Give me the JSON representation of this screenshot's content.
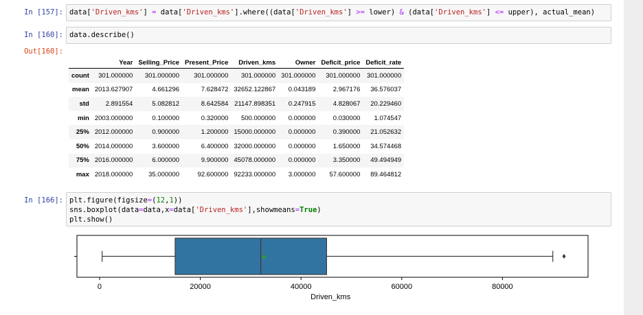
{
  "cells": [
    {
      "prompt": "In [157]:",
      "code_tokens": [
        {
          "t": "data[",
          "c": ""
        },
        {
          "t": "'Driven_kms'",
          "c": "s"
        },
        {
          "t": "] ",
          "c": ""
        },
        {
          "t": "=",
          "c": "o"
        },
        {
          "t": " data[",
          "c": ""
        },
        {
          "t": "'Driven_kms'",
          "c": "s"
        },
        {
          "t": "].where((data[",
          "c": ""
        },
        {
          "t": "'Driven_kms'",
          "c": "s"
        },
        {
          "t": "] ",
          "c": ""
        },
        {
          "t": ">=",
          "c": "o"
        },
        {
          "t": " lower) ",
          "c": ""
        },
        {
          "t": "&",
          "c": "o"
        },
        {
          "t": " (data[",
          "c": ""
        },
        {
          "t": "'Driven_kms'",
          "c": "s"
        },
        {
          "t": "] ",
          "c": ""
        },
        {
          "t": "<=",
          "c": "o"
        },
        {
          "t": " upper), actual_mean)",
          "c": ""
        }
      ]
    },
    {
      "prompt": "In [160]:",
      "code_tokens": [
        {
          "t": "data.describe()",
          "c": ""
        }
      ]
    }
  ],
  "output_prompt": "Out[160]:",
  "describe_table": {
    "columns": [
      "Year",
      "Selling_Price",
      "Present_Price",
      "Driven_kms",
      "Owner",
      "Deficit_price",
      "Deficit_rate"
    ],
    "rows": [
      {
        "label": "count",
        "values": [
          "301.000000",
          "301.000000",
          "301.000000",
          "301.000000",
          "301.000000",
          "301.000000",
          "301.000000"
        ]
      },
      {
        "label": "mean",
        "values": [
          "2013.627907",
          "4.661296",
          "7.628472",
          "32652.122867",
          "0.043189",
          "2.967176",
          "36.576037"
        ]
      },
      {
        "label": "std",
        "values": [
          "2.891554",
          "5.082812",
          "8.642584",
          "21147.898351",
          "0.247915",
          "4.828067",
          "20.229460"
        ]
      },
      {
        "label": "min",
        "values": [
          "2003.000000",
          "0.100000",
          "0.320000",
          "500.000000",
          "0.000000",
          "0.030000",
          "1.074547"
        ]
      },
      {
        "label": "25%",
        "values": [
          "2012.000000",
          "0.900000",
          "1.200000",
          "15000.000000",
          "0.000000",
          "0.390000",
          "21.052632"
        ]
      },
      {
        "label": "50%",
        "values": [
          "2014.000000",
          "3.600000",
          "6.400000",
          "32000.000000",
          "0.000000",
          "1.650000",
          "34.574468"
        ]
      },
      {
        "label": "75%",
        "values": [
          "2016.000000",
          "6.000000",
          "9.900000",
          "45078.000000",
          "0.000000",
          "3.350000",
          "49.494949"
        ]
      },
      {
        "label": "max",
        "values": [
          "2018.000000",
          "35.000000",
          "92.600000",
          "92233.000000",
          "3.000000",
          "57.600000",
          "89.464812"
        ]
      }
    ]
  },
  "plot_cell": {
    "prompt": "In [166]:",
    "lines": [
      [
        {
          "t": "plt.figure(figsize",
          "c": ""
        },
        {
          "t": "=",
          "c": "o"
        },
        {
          "t": "(",
          "c": ""
        },
        {
          "t": "12",
          "c": "n"
        },
        {
          "t": ",",
          "c": ""
        },
        {
          "t": "1",
          "c": "n"
        },
        {
          "t": "))",
          "c": ""
        }
      ],
      [
        {
          "t": "sns.boxplot(data",
          "c": ""
        },
        {
          "t": "=",
          "c": "o"
        },
        {
          "t": "data,x",
          "c": ""
        },
        {
          "t": "=",
          "c": "o"
        },
        {
          "t": "data[",
          "c": ""
        },
        {
          "t": "'Driven_kms'",
          "c": "s"
        },
        {
          "t": "],showmeans",
          "c": ""
        },
        {
          "t": "=",
          "c": "o"
        },
        {
          "t": "True",
          "c": "k"
        },
        {
          "t": ")",
          "c": ""
        }
      ],
      [
        {
          "t": "plt.show()",
          "c": ""
        }
      ]
    ]
  },
  "chart_data": {
    "type": "boxplot",
    "xlabel": "Driven_kms",
    "ylabel": "",
    "xlim": [
      -4500,
      97000
    ],
    "xticks": [
      0,
      20000,
      40000,
      60000,
      80000
    ],
    "xtick_labels": [
      "0",
      "20000",
      "40000",
      "60000",
      "80000"
    ],
    "box": {
      "whisker_low": 500,
      "q1": 15000,
      "median": 32000,
      "q3": 45078,
      "whisker_high": 90000,
      "mean": 32652,
      "outliers": [
        92233
      ]
    },
    "colors": {
      "box": "#3274a1",
      "mean_marker": "#2ca02c",
      "frame": "#000000"
    }
  }
}
